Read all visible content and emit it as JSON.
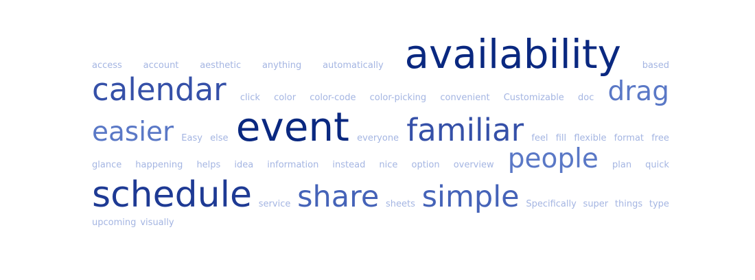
{
  "word_cloud": {
    "rows": [
      [
        {
          "text": "access",
          "weight": 1
        },
        {
          "text": "account",
          "weight": 1
        },
        {
          "text": "aesthetic",
          "weight": 1
        },
        {
          "text": "anything",
          "weight": 1
        },
        {
          "text": "automatically",
          "weight": 1
        },
        {
          "text": "availability",
          "weight": 9
        },
        {
          "text": "based",
          "weight": 1
        }
      ],
      [
        {
          "text": "calendar",
          "weight": 7
        },
        {
          "text": "click",
          "weight": 1
        },
        {
          "text": "color",
          "weight": 1
        },
        {
          "text": "color-code",
          "weight": 1
        },
        {
          "text": "color-picking",
          "weight": 1
        },
        {
          "text": "convenient",
          "weight": 1
        },
        {
          "text": "Customizable",
          "weight": 1
        },
        {
          "text": "doc",
          "weight": 1
        },
        {
          "text": "drag",
          "weight": 5
        }
      ],
      [
        {
          "text": "easier",
          "weight": 5
        },
        {
          "text": "Easy",
          "weight": 1
        },
        {
          "text": "else",
          "weight": 1
        },
        {
          "text": "event",
          "weight": 9
        },
        {
          "text": "everyone",
          "weight": 1
        },
        {
          "text": "familiar",
          "weight": 7
        },
        {
          "text": "feel",
          "weight": 1
        },
        {
          "text": "fill",
          "weight": 1
        },
        {
          "text": "flexible",
          "weight": 1
        },
        {
          "text": "format",
          "weight": 1
        },
        {
          "text": "free",
          "weight": 1
        }
      ],
      [
        {
          "text": "glance",
          "weight": 1
        },
        {
          "text": "happening",
          "weight": 1
        },
        {
          "text": "helps",
          "weight": 1
        },
        {
          "text": "idea",
          "weight": 1
        },
        {
          "text": "information",
          "weight": 1
        },
        {
          "text": "instead",
          "weight": 1
        },
        {
          "text": "nice",
          "weight": 1
        },
        {
          "text": "option",
          "weight": 1
        },
        {
          "text": "overview",
          "weight": 1
        },
        {
          "text": "people",
          "weight": 5
        },
        {
          "text": "plan",
          "weight": 1
        },
        {
          "text": "quick",
          "weight": 1
        }
      ],
      [
        {
          "text": "schedule",
          "weight": 8
        },
        {
          "text": "service",
          "weight": 1
        },
        {
          "text": "share",
          "weight": 6
        },
        {
          "text": "sheets",
          "weight": 1
        },
        {
          "text": "simple",
          "weight": 6
        },
        {
          "text": "Specifically",
          "weight": 1
        },
        {
          "text": "super",
          "weight": 1
        },
        {
          "text": "things",
          "weight": 1
        },
        {
          "text": "type",
          "weight": 1
        }
      ],
      [
        {
          "text": "upcoming",
          "weight": 1
        },
        {
          "text": "visually",
          "weight": 1
        }
      ]
    ]
  }
}
